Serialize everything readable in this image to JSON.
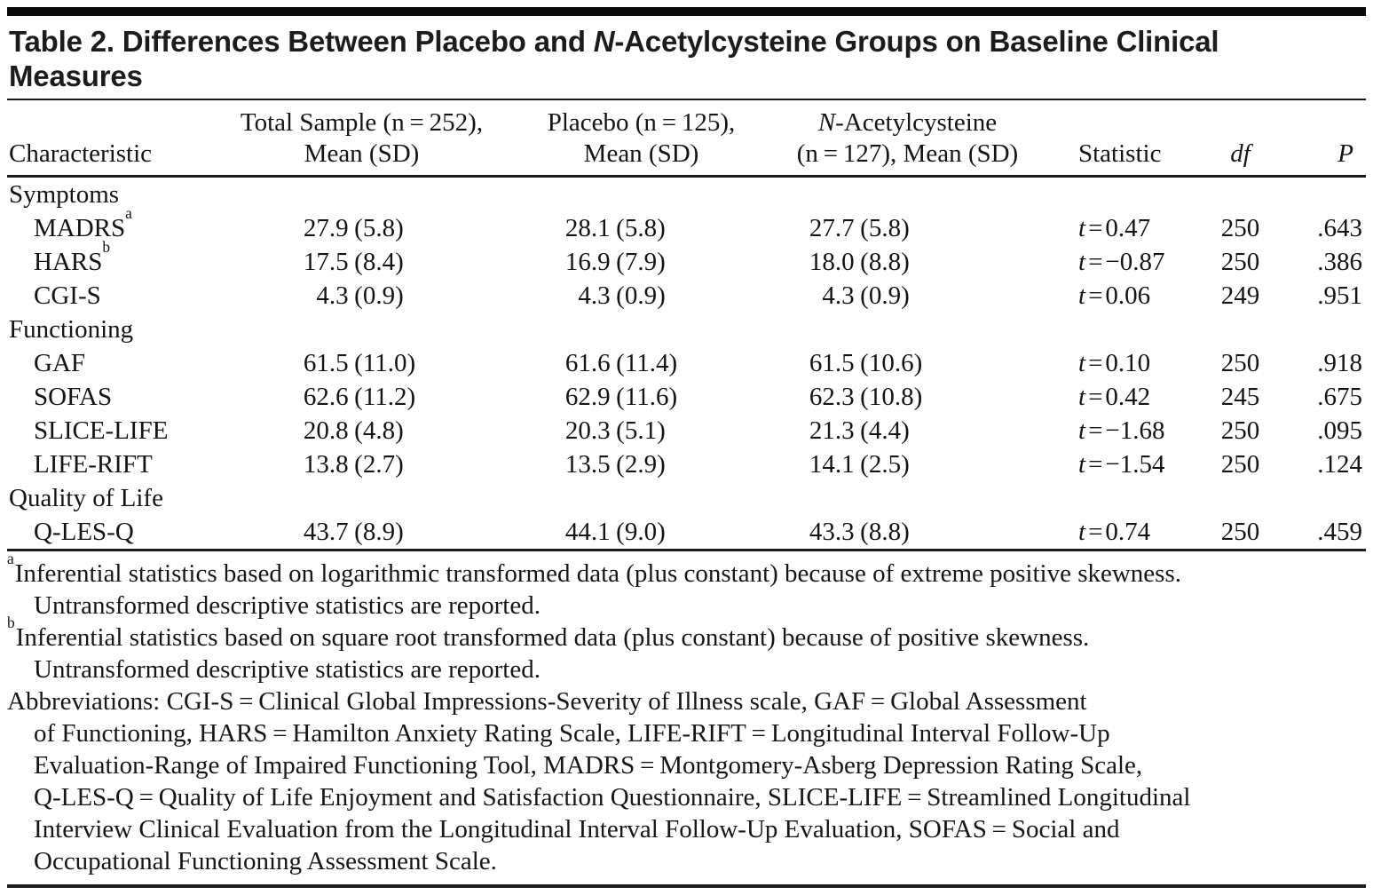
{
  "title": {
    "line1_before": "Table 2. Differences Between Placebo and ",
    "line1_italic": "N",
    "line1_after": "-Acetylcysteine Groups on Baseline Clinical",
    "line2": "Measures"
  },
  "columns": {
    "characteristic": "Characteristic",
    "total_line1": "Total Sample (n = 252),",
    "total_line2": "Mean (SD)",
    "placebo_line1": "Placebo (n = 125),",
    "placebo_line2": "Mean (SD)",
    "nac_line1_italic": "N",
    "nac_line1_rest": "-Acetylcysteine",
    "nac_line2": "(n = 127), Mean (SD)",
    "statistic": "Statistic",
    "df": "df",
    "p": "P"
  },
  "rows": [
    {
      "label": "Symptoms",
      "type": "section"
    },
    {
      "label": "MADRS",
      "sup": "a",
      "total_mean": "27.9",
      "total_sd": "(5.8)",
      "placebo_mean": "28.1",
      "placebo_sd": "(5.8)",
      "nac_mean": "27.7",
      "nac_sd": "(5.8)",
      "stat_t": "t",
      "stat_eq": "=",
      "stat_val": "0.47",
      "df": "250",
      "p": ".643"
    },
    {
      "label": "HARS",
      "sup": "b",
      "total_mean": "17.5",
      "total_sd": "(8.4)",
      "placebo_mean": "16.9",
      "placebo_sd": "(7.9)",
      "nac_mean": "18.0",
      "nac_sd": "(8.8)",
      "stat_t": "t",
      "stat_eq": "=",
      "stat_val": "−0.87",
      "df": "250",
      "p": ".386"
    },
    {
      "label": "CGI-S",
      "total_mean": "4.3",
      "total_sd": "(0.9)",
      "placebo_mean": "4.3",
      "placebo_sd": "(0.9)",
      "nac_mean": "4.3",
      "nac_sd": "(0.9)",
      "stat_t": "t",
      "stat_eq": "=",
      "stat_val": "0.06",
      "df": "249",
      "p": ".951"
    },
    {
      "label": "Functioning",
      "type": "section"
    },
    {
      "label": "GAF",
      "total_mean": "61.5",
      "total_sd": "(11.0)",
      "placebo_mean": "61.6",
      "placebo_sd": "(11.4)",
      "nac_mean": "61.5",
      "nac_sd": "(10.6)",
      "stat_t": "t",
      "stat_eq": "=",
      "stat_val": "0.10",
      "df": "250",
      "p": ".918"
    },
    {
      "label": "SOFAS",
      "total_mean": "62.6",
      "total_sd": "(11.2)",
      "placebo_mean": "62.9",
      "placebo_sd": "(11.6)",
      "nac_mean": "62.3",
      "nac_sd": "(10.8)",
      "stat_t": "t",
      "stat_eq": "=",
      "stat_val": "0.42",
      "df": "245",
      "p": ".675"
    },
    {
      "label": "SLICE-LIFE",
      "total_mean": "20.8",
      "total_sd": "(4.8)",
      "placebo_mean": "20.3",
      "placebo_sd": "(5.1)",
      "nac_mean": "21.3",
      "nac_sd": "(4.4)",
      "stat_t": "t",
      "stat_eq": "=",
      "stat_val": "−1.68",
      "df": "250",
      "p": ".095"
    },
    {
      "label": "LIFE-RIFT",
      "total_mean": "13.8",
      "total_sd": "(2.7)",
      "placebo_mean": "13.5",
      "placebo_sd": "(2.9)",
      "nac_mean": "14.1",
      "nac_sd": "(2.5)",
      "stat_t": "t",
      "stat_eq": "=",
      "stat_val": "−1.54",
      "df": "250",
      "p": ".124"
    },
    {
      "label": "Quality of Life",
      "type": "section"
    },
    {
      "label": "Q-LES-Q",
      "total_mean": "43.7",
      "total_sd": "(8.9)",
      "placebo_mean": "44.1",
      "placebo_sd": "(9.0)",
      "nac_mean": "43.3",
      "nac_sd": "(8.8)",
      "stat_t": "t",
      "stat_eq": "=",
      "stat_val": "0.74",
      "df": "250",
      "p": ".459"
    }
  ],
  "footnotes": [
    {
      "sup": "a",
      "line1": "Inferential statistics based on logarithmic transformed data (plus constant) because of extreme positive skewness.",
      "line2": "Untransformed descriptive statistics are reported."
    },
    {
      "sup": "b",
      "line1": "Inferential statistics based on square root transformed data (plus constant) because of positive skewness.",
      "line2": "Untransformed descriptive statistics are reported."
    }
  ],
  "abbreviations": {
    "lines": [
      "Abbreviations: CGI-S = Clinical Global Impressions-Severity of Illness scale, GAF = Global Assessment",
      "of Functioning, HARS = Hamilton Anxiety Rating Scale, LIFE-RIFT = Longitudinal Interval Follow-Up",
      "Evaluation-Range of Impaired Functioning Tool, MADRS = Montgomery-Asberg Depression Rating Scale,",
      "Q-LES-Q = Quality of Life Enjoyment and Satisfaction Questionnaire, SLICE-LIFE = Streamlined Longitudinal",
      "Interview Clinical Evaluation from the Longitudinal Interval Follow-Up Evaluation, SOFAS = Social and",
      "Occupational Functioning Assessment Scale."
    ]
  }
}
